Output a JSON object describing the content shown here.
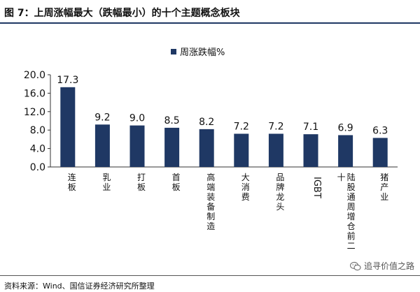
{
  "header": {
    "title": "图 7：上周涨幅最大（跌幅最小）的十个主题概念板块"
  },
  "footer": {
    "source": "资料来源：Wind、国信证券经济研究所整理"
  },
  "watermark": {
    "text": "追寻价值之路",
    "icon": "wechat-icon"
  },
  "colors": {
    "bar": "#1f3864",
    "rule": "#1f3864"
  },
  "chart_data": {
    "type": "bar",
    "categories": [
      "连板",
      "乳业",
      "打板",
      "首板",
      "高端装备制造",
      "大消费",
      "品牌龙头",
      "IGBT",
      "陆股通周增仓前二十",
      "猪产业"
    ],
    "series": [
      {
        "name": "周涨跌幅%",
        "values": [
          17.3,
          9.2,
          9.0,
          8.5,
          8.2,
          7.2,
          7.2,
          7.1,
          6.9,
          6.3
        ]
      }
    ],
    "data_labels": [
      "17.3",
      "9.2",
      "9.0",
      "8.5",
      "8.2",
      "7.2",
      "7.2",
      "7.1",
      "6.9",
      "6.3"
    ],
    "y_ticks": [
      "0.0",
      "4.0",
      "8.0",
      "12.0",
      "16.0",
      "20.0"
    ],
    "ylim": [
      0,
      20
    ],
    "legend_position": "top-center",
    "grid": false
  }
}
